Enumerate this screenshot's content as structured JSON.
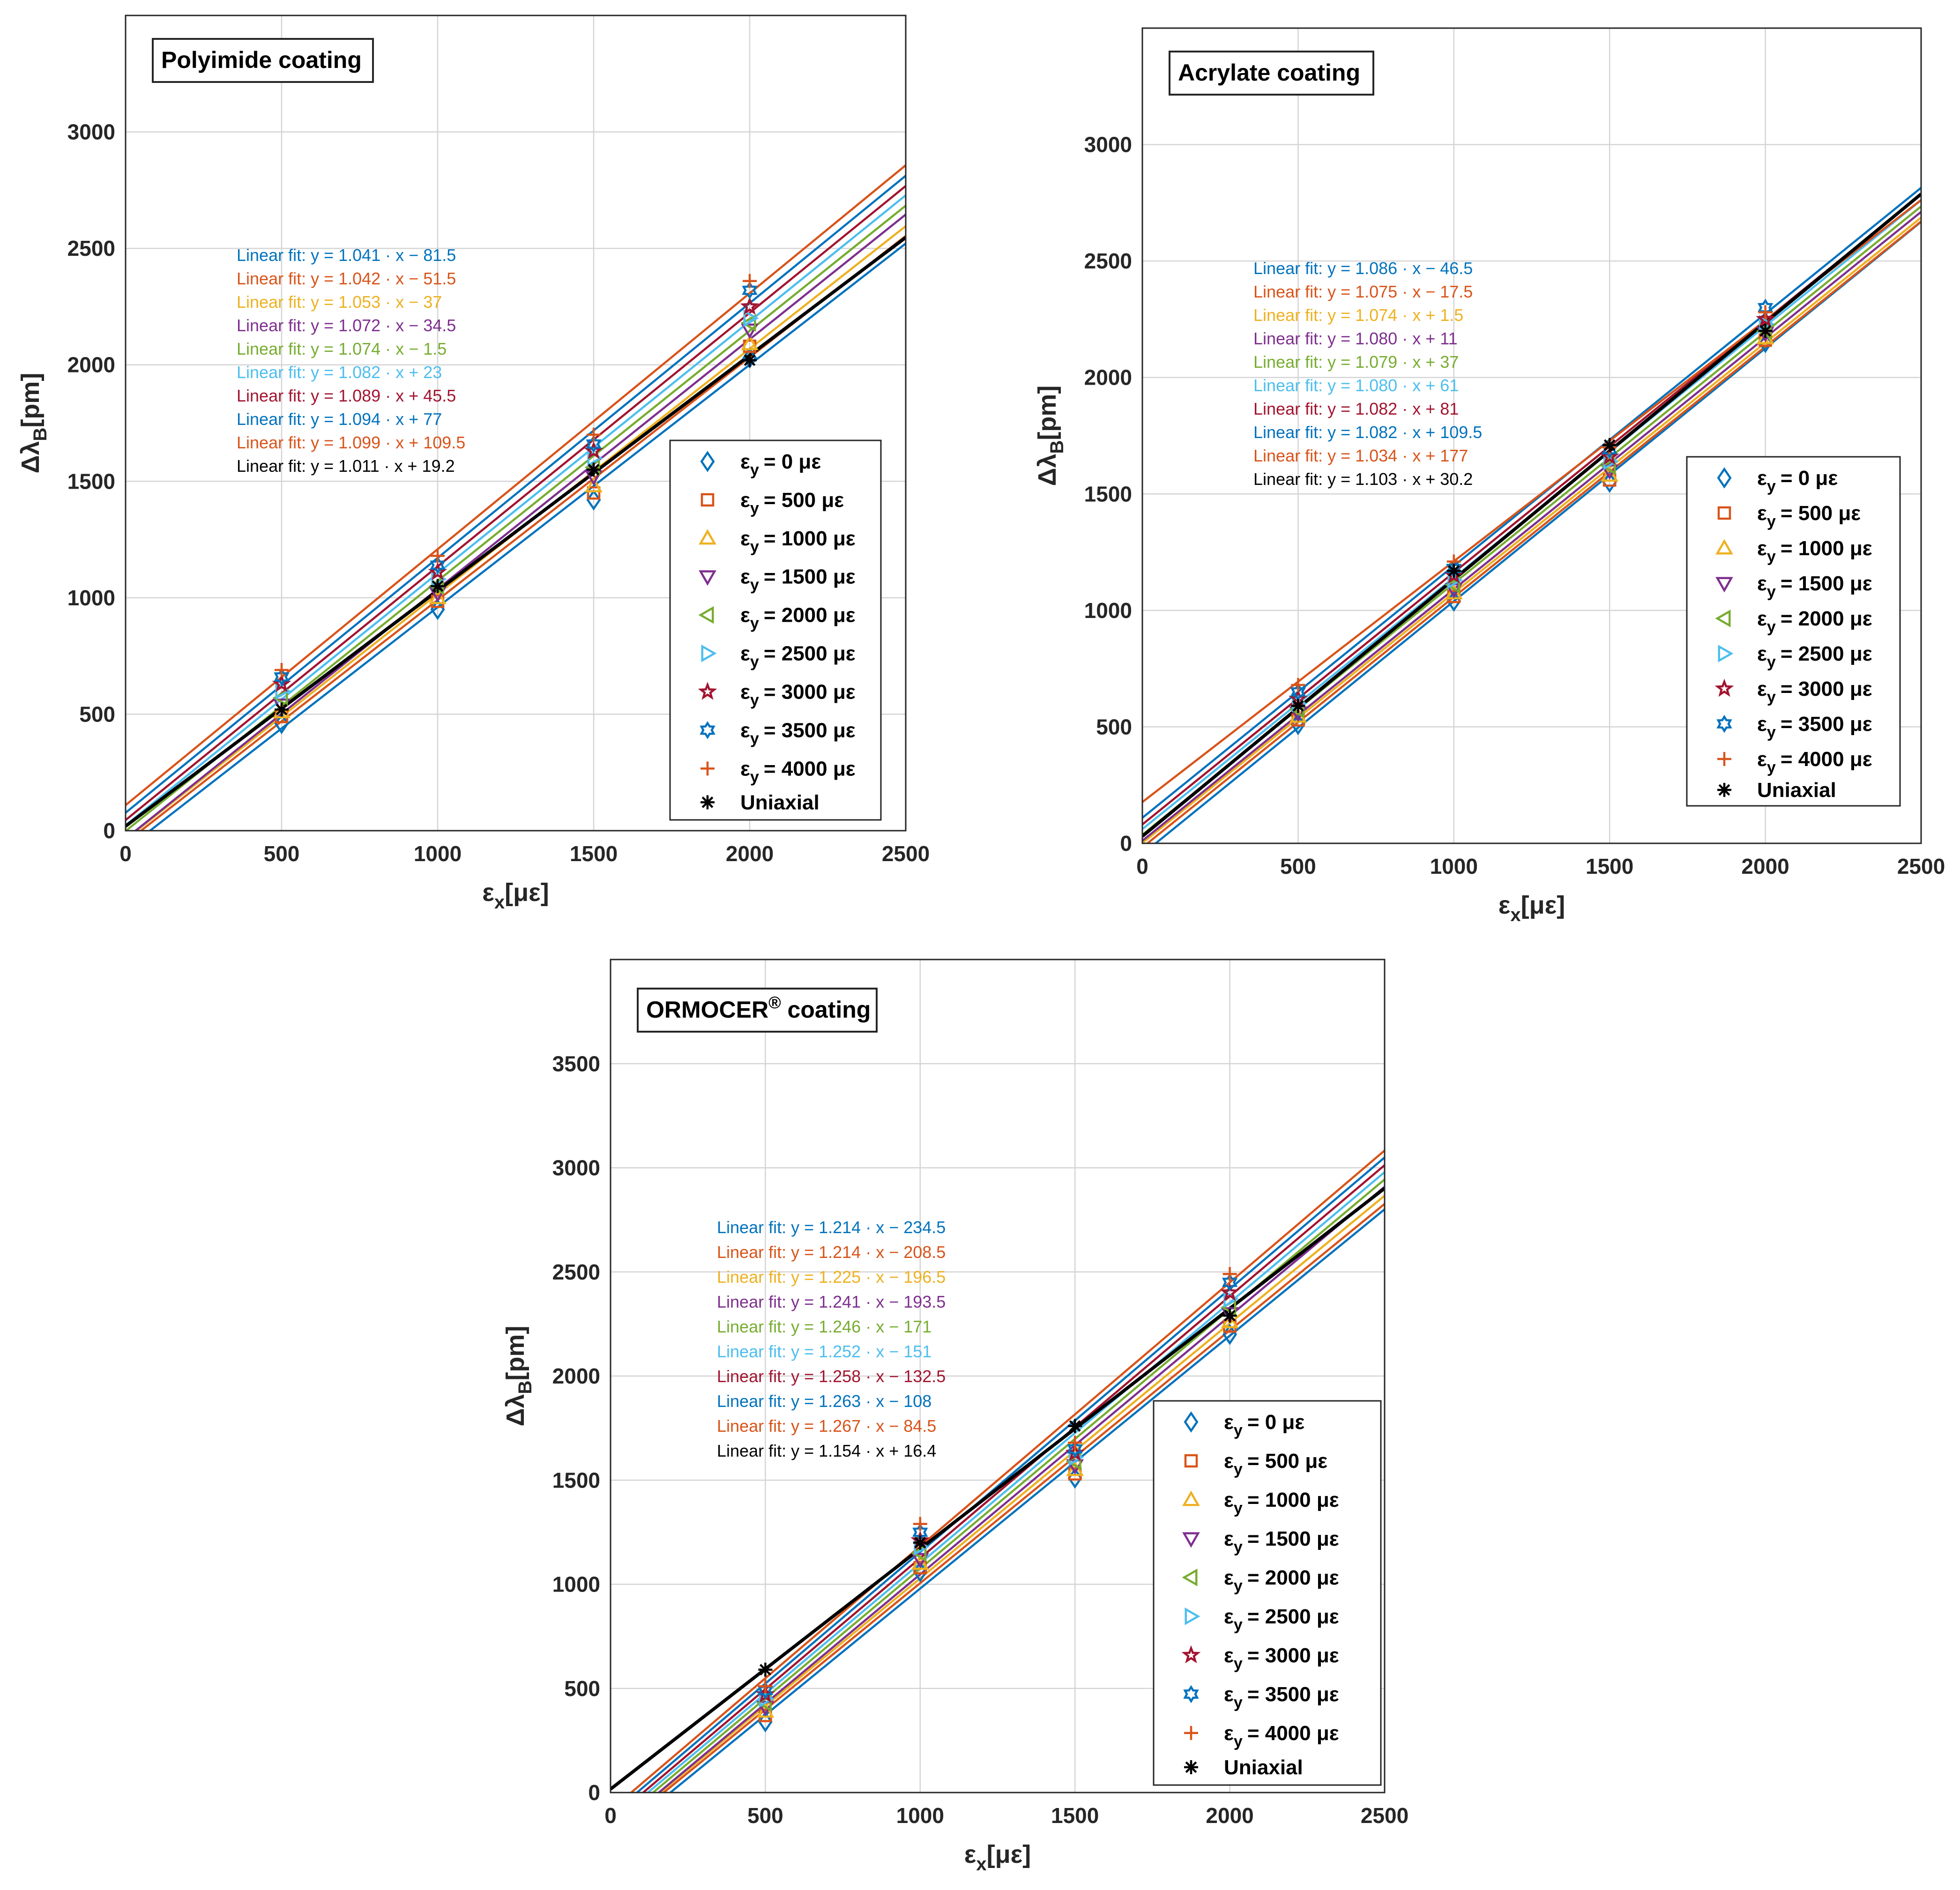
{
  "colors": {
    "series": [
      "#0072BD",
      "#D95319",
      "#EDB120",
      "#7E2F8E",
      "#77AC30",
      "#4DBEEE",
      "#A2142F",
      "#0072BD",
      "#D95319"
    ],
    "uniaxial": "#000000",
    "grid": "#d4d4d4",
    "axis": "#262626"
  },
  "legend": {
    "labels": [
      "ε",
      "ε",
      "ε",
      "ε",
      "ε",
      "ε",
      "ε",
      "ε",
      "ε"
    ],
    "subscript": "y",
    "values": [
      "= 0 με",
      "= 500 με",
      "= 1000 με",
      "= 1500 με",
      "= 2000 με",
      "= 2500 με",
      "= 3000 με",
      "= 3500 με",
      "= 4000 με"
    ],
    "uniaxial_label": "Uniaxial",
    "markers": [
      "diamond-icon",
      "square-icon",
      "triangle-up-icon",
      "triangle-down-icon",
      "triangle-left-icon",
      "triangle-right-icon",
      "pentagram-icon",
      "hexagram-icon",
      "plus-icon"
    ],
    "uniaxial_marker": "asterisk-icon"
  },
  "chart_data": [
    {
      "type": "scatter",
      "title": "Polyimide coating",
      "xlabel_main": "ε",
      "xlabel_sub": "x",
      "xlabel_unit": "[με]",
      "ylabel_main": "Δλ",
      "ylabel_sub": "B",
      "ylabel_unit": "[pm]",
      "xlim": [
        0,
        2500
      ],
      "ylim": [
        0,
        3500
      ],
      "x_ticks": [
        0,
        500,
        1000,
        1500,
        2000,
        2500
      ],
      "y_ticks": [
        0,
        500,
        1000,
        1500,
        2000,
        2500,
        3000
      ],
      "x": [
        500,
        1000,
        1500,
        2000
      ],
      "series": [
        {
          "name": "εy = 0 με",
          "fit": "Linear fit: y = 1.041 · x − 81.5",
          "slope": 1.041,
          "intercept": -81.5,
          "values": [
            460,
            950,
            1420,
            2030
          ]
        },
        {
          "name": "εy = 500 με",
          "fit": "Linear fit: y = 1.042 · x − 51.5",
          "slope": 1.042,
          "intercept": -51.5,
          "values": [
            490,
            985,
            1450,
            2080
          ]
        },
        {
          "name": "εy = 1000 με",
          "fit": "Linear fit: y = 1.053 · x − 37",
          "slope": 1.053,
          "intercept": -37,
          "values": [
            510,
            1000,
            1480,
            2090
          ]
        },
        {
          "name": "εy = 1500 με",
          "fit": "Linear fit: y = 1.072 · x − 34.5",
          "slope": 1.072,
          "intercept": -34.5,
          "values": [
            540,
            1020,
            1520,
            2150
          ]
        },
        {
          "name": "εy = 2000 με",
          "fit": "Linear fit: y = 1.074 · x − 1.5",
          "slope": 1.074,
          "intercept": -1.5,
          "values": [
            570,
            1050,
            1560,
            2180
          ]
        },
        {
          "name": "εy = 2500 με",
          "fit": "Linear fit: y = 1.082 · x + 23",
          "slope": 1.082,
          "intercept": 23,
          "values": [
            600,
            1080,
            1600,
            2200
          ]
        },
        {
          "name": "εy = 3000 με",
          "fit": "Linear fit: y = 1.089 · x + 45.5",
          "slope": 1.089,
          "intercept": 45.5,
          "values": [
            630,
            1110,
            1630,
            2250
          ]
        },
        {
          "name": "εy = 3500 με",
          "fit": "Linear fit: y = 1.094 · x + 77",
          "slope": 1.094,
          "intercept": 77,
          "values": [
            660,
            1140,
            1660,
            2320
          ]
        },
        {
          "name": "εy = 4000 με",
          "fit": "Linear fit: y = 1.099 · x + 109.5",
          "slope": 1.099,
          "intercept": 109.5,
          "values": [
            690,
            1180,
            1700,
            2360
          ]
        },
        {
          "name": "Uniaxial",
          "fit": "Linear fit: y = 1.011 · x + 19.2",
          "slope": 1.011,
          "intercept": 19.2,
          "values": [
            520,
            1050,
            1550,
            2020
          ]
        }
      ]
    },
    {
      "type": "scatter",
      "title": "Acrylate coating",
      "xlabel_main": "ε",
      "xlabel_sub": "x",
      "xlabel_unit": "[με]",
      "ylabel_main": "Δλ",
      "ylabel_sub": "B",
      "ylabel_unit": "[pm]",
      "xlim": [
        0,
        2500
      ],
      "ylim": [
        0,
        3500
      ],
      "x_ticks": [
        0,
        500,
        1000,
        1500,
        2000,
        2500
      ],
      "y_ticks": [
        0,
        500,
        1000,
        1500,
        2000,
        2500,
        3000
      ],
      "x": [
        500,
        1000,
        1500,
        2000
      ],
      "series": [
        {
          "name": "εy = 0 με",
          "fit": "Linear fit: y = 1.086 · x − 46.5",
          "slope": 1.086,
          "intercept": -46.5,
          "values": [
            510,
            1040,
            1550,
            2150
          ]
        },
        {
          "name": "εy = 500 με",
          "fit": "Linear fit: y = 1.075 · x − 17.5",
          "slope": 1.075,
          "intercept": -17.5,
          "values": [
            530,
            1060,
            1560,
            2160
          ]
        },
        {
          "name": "εy = 1000 με",
          "fit": "Linear fit: y = 1.074 · x + 1.5",
          "slope": 1.074,
          "intercept": 1.5,
          "values": [
            545,
            1075,
            1580,
            2170
          ]
        },
        {
          "name": "εy = 1500 με",
          "fit": "Linear fit: y = 1.080 · x + 11",
          "slope": 1.08,
          "intercept": 11,
          "values": [
            560,
            1090,
            1600,
            2190
          ]
        },
        {
          "name": "εy = 2000 με",
          "fit": "Linear fit: y = 1.079 · x + 37",
          "slope": 1.079,
          "intercept": 37,
          "values": [
            575,
            1110,
            1620,
            2200
          ]
        },
        {
          "name": "εy = 2500 με",
          "fit": "Linear fit: y = 1.080 · x + 61",
          "slope": 1.08,
          "intercept": 61,
          "values": [
            600,
            1130,
            1640,
            2230
          ]
        },
        {
          "name": "εy = 3000 με",
          "fit": "Linear fit: y = 1.082 · x + 81",
          "slope": 1.082,
          "intercept": 81,
          "values": [
            620,
            1150,
            1660,
            2250
          ]
        },
        {
          "name": "εy = 3500 με",
          "fit": "Linear fit: y = 1.082 · x + 109.5",
          "slope": 1.082,
          "intercept": 109.5,
          "values": [
            650,
            1180,
            1690,
            2300
          ]
        },
        {
          "name": "εy = 4000 με",
          "fit": "Linear fit: y = 1.034 · x + 177",
          "slope": 1.034,
          "intercept": 177,
          "values": [
            680,
            1210,
            1700,
            2280
          ]
        },
        {
          "name": "Uniaxial",
          "fit": "Linear fit: y = 1.103 · x + 30.2",
          "slope": 1.103,
          "intercept": 30.2,
          "values": [
            590,
            1170,
            1710,
            2200
          ]
        }
      ]
    },
    {
      "type": "scatter",
      "title": "ORMOCER",
      "title_sup": "®",
      "title_tail": " coating",
      "xlabel_main": "ε",
      "xlabel_sub": "x",
      "xlabel_unit": "[με]",
      "ylabel_main": "Δλ",
      "ylabel_sub": "B",
      "ylabel_unit": "[pm]",
      "xlim": [
        0,
        2500
      ],
      "ylim": [
        0,
        4000
      ],
      "x_ticks": [
        0,
        500,
        1000,
        1500,
        2000,
        2500
      ],
      "y_ticks": [
        0,
        500,
        1000,
        1500,
        2000,
        2500,
        3000,
        3500
      ],
      "x": [
        500,
        1000,
        1500,
        2000
      ],
      "series": [
        {
          "name": "εy = 0 με",
          "fit": "Linear fit: y = 1.214 · x − 234.5",
          "slope": 1.214,
          "intercept": -234.5,
          "values": [
            340,
            1060,
            1510,
            2200
          ]
        },
        {
          "name": "εy = 500 με",
          "fit": "Linear fit: y = 1.214 · x − 208.5",
          "slope": 1.214,
          "intercept": -208.5,
          "values": [
            370,
            1080,
            1530,
            2240
          ]
        },
        {
          "name": "εy = 1000 με",
          "fit": "Linear fit: y = 1.225 · x − 196.5",
          "slope": 1.225,
          "intercept": -196.5,
          "values": [
            390,
            1100,
            1550,
            2260
          ]
        },
        {
          "name": "εy = 1500 με",
          "fit": "Linear fit: y = 1.241 · x − 193.5",
          "slope": 1.241,
          "intercept": -193.5,
          "values": [
            410,
            1120,
            1570,
            2300
          ]
        },
        {
          "name": "εy = 2000 με",
          "fit": "Linear fit: y = 1.246 · x − 171",
          "slope": 1.246,
          "intercept": -171,
          "values": [
            430,
            1150,
            1590,
            2330
          ]
        },
        {
          "name": "εy = 2500 με",
          "fit": "Linear fit: y = 1.252 · x − 151",
          "slope": 1.252,
          "intercept": -151,
          "values": [
            450,
            1180,
            1610,
            2370
          ]
        },
        {
          "name": "εy = 3000 με",
          "fit": "Linear fit: y = 1.258 · x − 132.5",
          "slope": 1.258,
          "intercept": -132.5,
          "values": [
            470,
            1210,
            1630,
            2400
          ]
        },
        {
          "name": "εy = 3500 με",
          "fit": "Linear fit: y = 1.263 · x − 108",
          "slope": 1.263,
          "intercept": -108,
          "values": [
            490,
            1250,
            1650,
            2450
          ]
        },
        {
          "name": "εy = 4000 με",
          "fit": "Linear fit: y = 1.267 · x − 84.5",
          "slope": 1.267,
          "intercept": -84.5,
          "values": [
            510,
            1290,
            1680,
            2490
          ]
        },
        {
          "name": "Uniaxial",
          "fit": "Linear fit: y = 1.154 · x + 16.4",
          "slope": 1.154,
          "intercept": 16.4,
          "values": [
            590,
            1200,
            1760,
            2290
          ]
        }
      ]
    }
  ]
}
